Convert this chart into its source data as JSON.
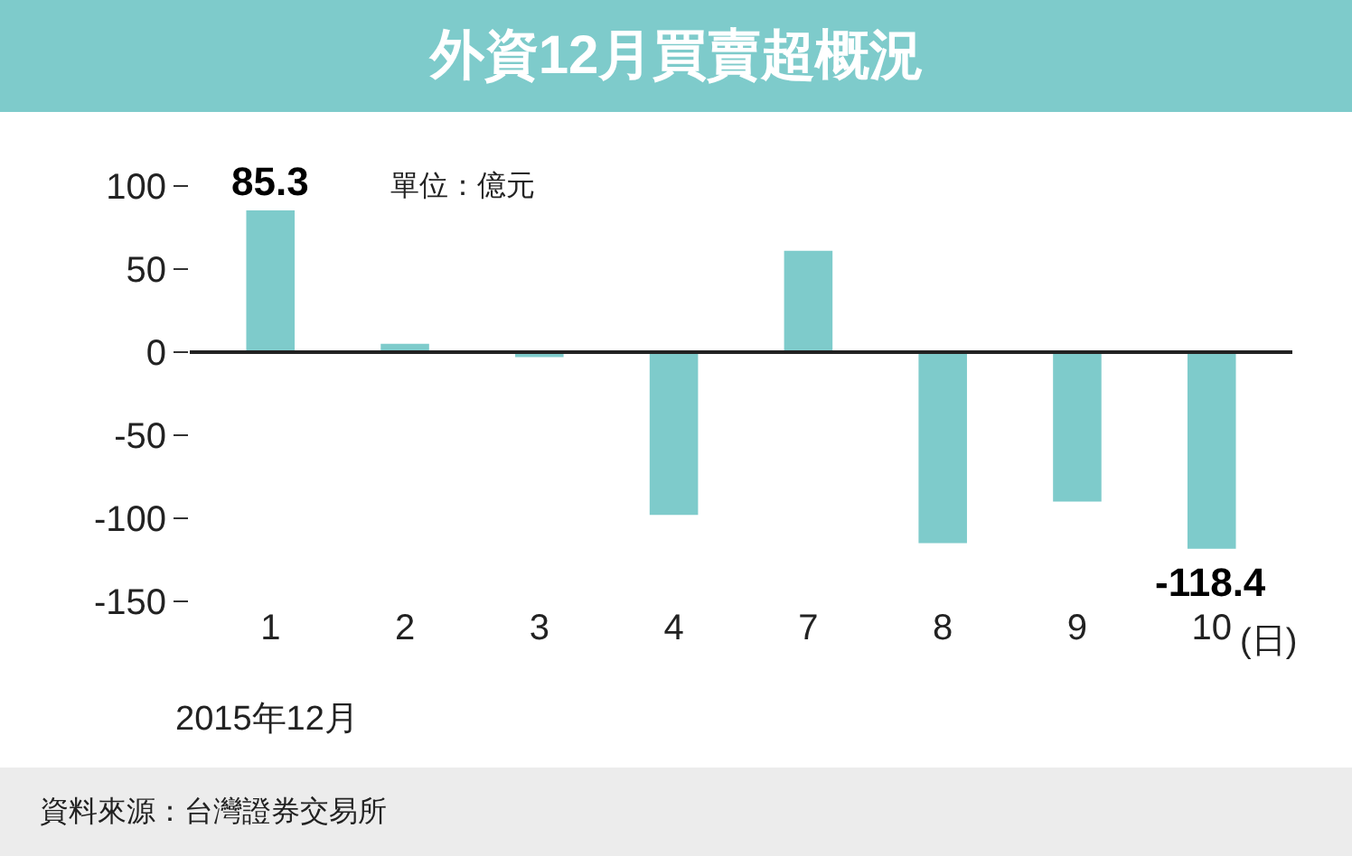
{
  "chart_data": {
    "type": "bar",
    "title": "外資12月買賣超概況",
    "subtitle": "單位：億元",
    "xlabel": "2015年12月",
    "categories": [
      "1",
      "2",
      "3",
      "4",
      "7",
      "8",
      "9",
      "10"
    ],
    "values": [
      85.3,
      5,
      -3,
      -98,
      61,
      -115,
      -90,
      -118.4
    ],
    "value_labels": [
      "85.3",
      null,
      null,
      null,
      null,
      null,
      null,
      "-118.4"
    ],
    "color": "#7ecbcb",
    "ylim": [
      -150,
      100
    ],
    "ref_lines": [
      {
        "axis": "y",
        "value": 0,
        "color": "#222222"
      }
    ],
    "yticks": [
      -150,
      -100,
      -50,
      0,
      50,
      100
    ],
    "annotations": [
      "(日)",
      "資料來源：台灣證券交易所"
    ]
  }
}
